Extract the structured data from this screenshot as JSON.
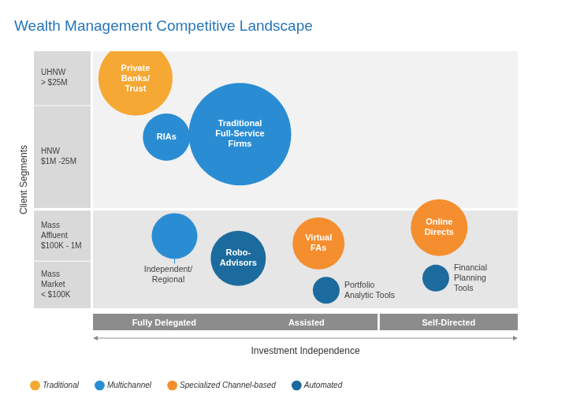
{
  "chart_data": {
    "type": "bubble",
    "title": "Wealth Management Competitive Landscape",
    "x_label": "Investment Independence",
    "y_label": "Client Segments",
    "xlim": [
      0,
      100
    ],
    "ylim": [
      0,
      100
    ],
    "tick_labels": false,
    "grid": false,
    "legend": "bottom",
    "x_segments": [
      {
        "from": 0,
        "to": 67,
        "bands": [
          {
            "label": "Fully Delegated",
            "from": 0,
            "to": 33.5
          },
          {
            "label": "Assisted",
            "from": 33.5,
            "to": 67
          }
        ]
      },
      {
        "from": 67.5,
        "to": 100,
        "bands": [
          {
            "label": "Self-Directed",
            "from": 67.5,
            "to": 100
          }
        ]
      }
    ],
    "y_segments": [
      {
        "from": 0,
        "to": 38,
        "bands": [
          {
            "label": [
              "Mass",
              "Market",
              "< $100K"
            ],
            "from": 0,
            "to": 18.5
          },
          {
            "label": [
              "Mass",
              "Affluent",
              "$100K - 1M"
            ],
            "from": 18.5,
            "to": 38
          }
        ]
      },
      {
        "from": 39,
        "to": 100,
        "bands": [
          {
            "label": [
              "HNW",
              "$1M -25M"
            ],
            "from": 39,
            "to": 79
          },
          {
            "label": [
              "UHNW",
              "> $25M"
            ],
            "from": 79,
            "to": 100
          }
        ]
      }
    ],
    "series": [
      {
        "name": "Traditional",
        "color": "#f5a833",
        "points": [
          {
            "label": [
              "Private",
              "Banks/",
              "Trust"
            ],
            "x": 10.0,
            "y": 89.4,
            "size": 47
          }
        ]
      },
      {
        "name": "Multichannel",
        "color": "#2a8dd4",
        "points": [
          {
            "label": [
              "RIAs"
            ],
            "x": 17.3,
            "y": 66.6,
            "size": 30
          },
          {
            "label": [
              "Traditional",
              "Full-Service",
              "Firms"
            ],
            "x": 34.6,
            "y": 67.7,
            "size": 65
          },
          {
            "label": [
              "Independent/",
              "Regional"
            ],
            "x": 19.2,
            "y": 28.1,
            "size": 29
          }
        ]
      },
      {
        "name": "Specialized Channel-based",
        "color": "#f58e2f",
        "points": [
          {
            "label": [
              "Virtual",
              "FAs"
            ],
            "x": 53.1,
            "y": 25.2,
            "size": 33
          },
          {
            "label": [
              "Online",
              "Directs"
            ],
            "x": 81.5,
            "y": 31.4,
            "size": 36
          }
        ]
      },
      {
        "name": "Automated",
        "color": "#1c6b9e",
        "points": [
          {
            "label": [
              "Robo-",
              "Advisors"
            ],
            "x": 34.2,
            "y": 19.4,
            "size": 35
          },
          {
            "label": [
              "Portfolio",
              "Analytic Tools"
            ],
            "x": 54.9,
            "y": 7.0,
            "size": 17
          },
          {
            "label": [
              "Financial",
              "Planning",
              "Tools"
            ],
            "x": 80.7,
            "y": 11.7,
            "size": 17
          }
        ]
      }
    ]
  }
}
